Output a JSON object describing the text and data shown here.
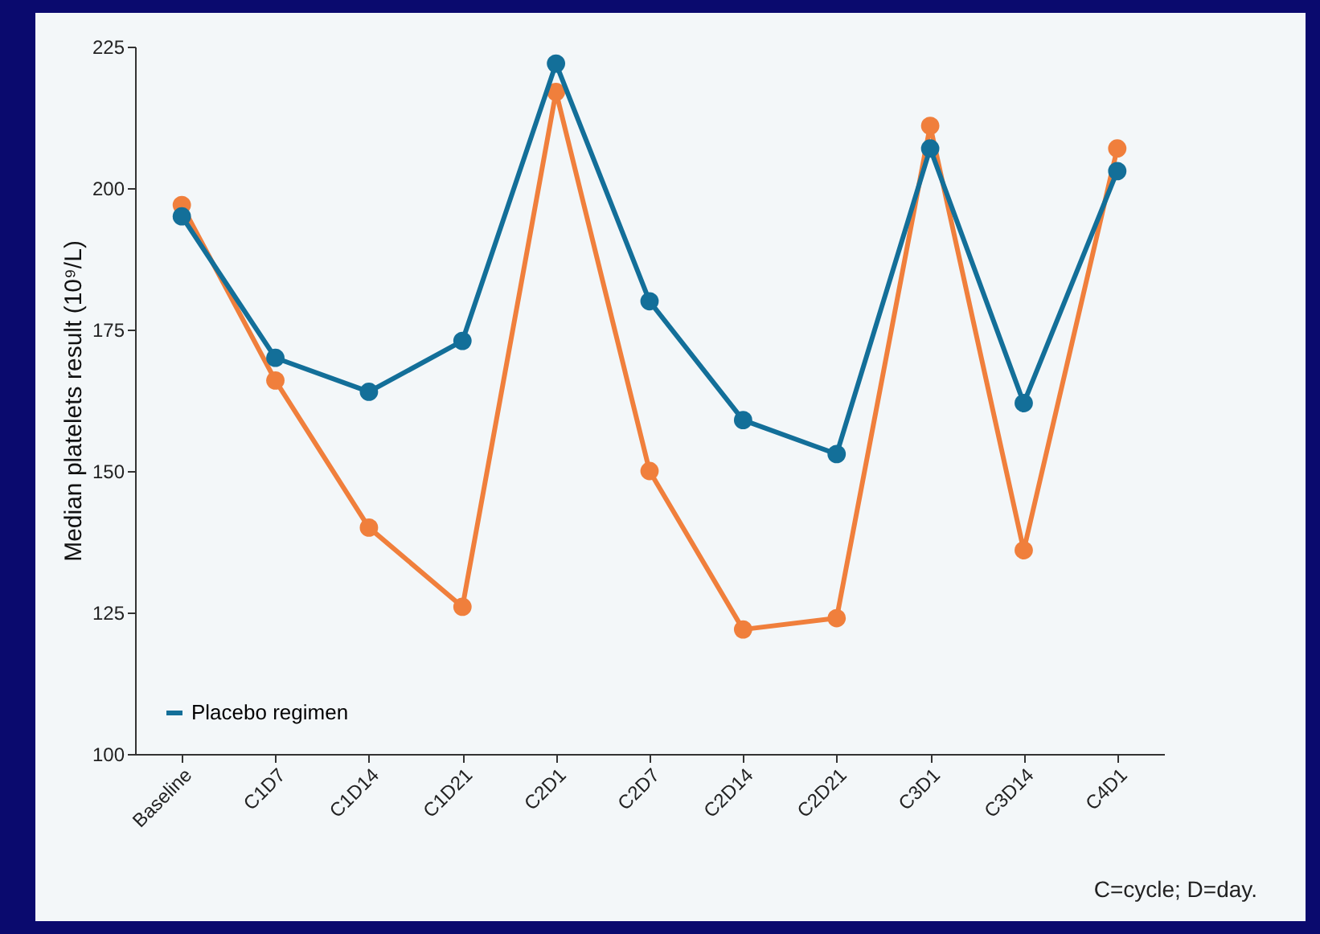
{
  "chart_data": {
    "type": "line",
    "ylabel": "Median platelets result (10⁹/L)",
    "categories": [
      "Baseline",
      "C1D7",
      "C1D14",
      "C1D21",
      "C2D1",
      "C2D7",
      "C2D14",
      "C2D21",
      "C3D1",
      "C3D14",
      "C4D1"
    ],
    "series": [
      {
        "color": "#f07f3c",
        "values": [
          197,
          166,
          140,
          126,
          217,
          150,
          122,
          124,
          211,
          136,
          207
        ]
      },
      {
        "name": "Placebo regimen",
        "color": "#136f99",
        "values": [
          195,
          170,
          164,
          173,
          222,
          180,
          159,
          153,
          207,
          162,
          203
        ]
      }
    ],
    "ylim": [
      100,
      225
    ],
    "yticks": [
      100,
      125,
      150,
      175,
      200,
      225
    ],
    "marker": "circle",
    "legend": "bottom left",
    "grid": false,
    "annotations": [
      "C=cycle; D=day."
    ]
  }
}
